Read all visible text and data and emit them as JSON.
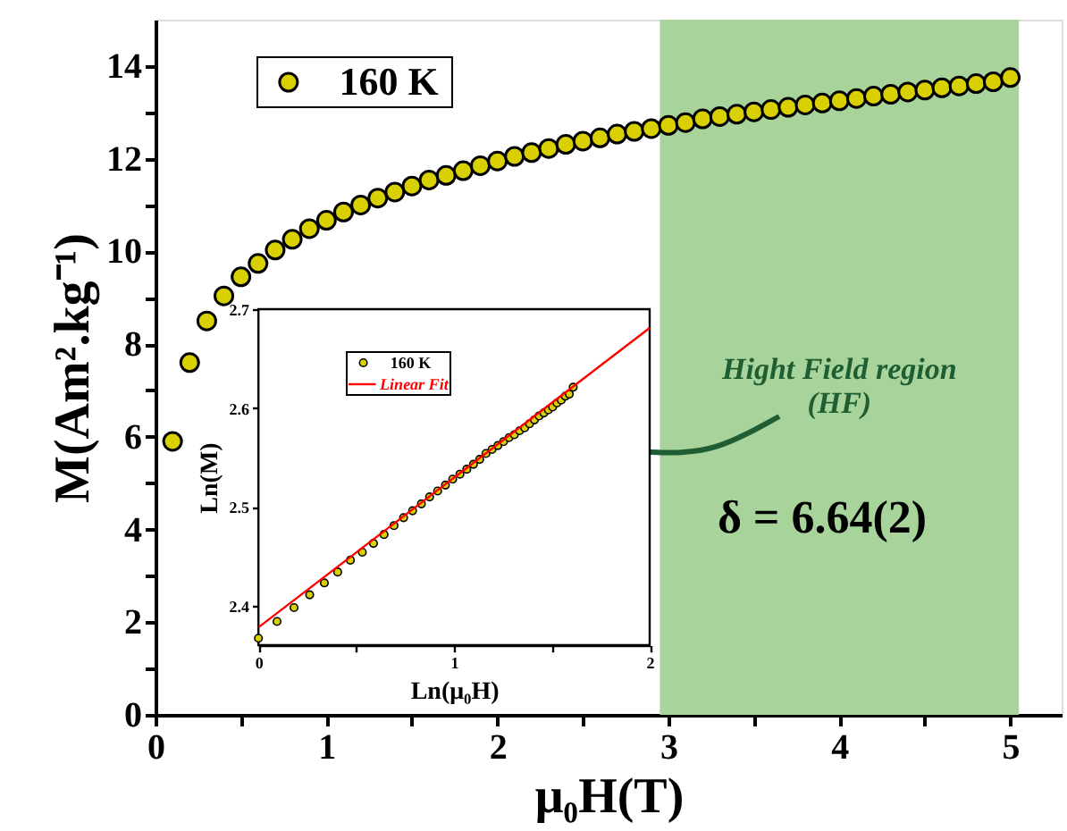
{
  "chart_data": [
    {
      "type": "scatter",
      "xlabel": "μ₀H(T)",
      "ylabel": "M(Am².kg⁻¹)",
      "x": [
        0.1,
        0.2,
        0.3,
        0.4,
        0.5,
        0.6,
        0.7,
        0.8,
        0.9,
        1.0,
        1.1,
        1.2,
        1.3,
        1.4,
        1.5,
        1.6,
        1.7,
        1.8,
        1.9,
        2.0,
        2.1,
        2.2,
        2.3,
        2.4,
        2.5,
        2.6,
        2.7,
        2.8,
        2.9,
        3.0,
        3.1,
        3.2,
        3.3,
        3.4,
        3.5,
        3.6,
        3.7,
        3.8,
        3.9,
        4.0,
        4.1,
        4.2,
        4.3,
        4.4,
        4.5,
        4.6,
        4.7,
        4.8,
        4.9,
        5.0
      ],
      "series": [
        {
          "name": "160 K",
          "color": "#d8d000",
          "values": [
            5.9,
            7.6,
            8.5,
            9.04,
            9.45,
            9.74,
            10.03,
            10.26,
            10.49,
            10.67,
            10.85,
            11.0,
            11.15,
            11.28,
            11.41,
            11.54,
            11.64,
            11.74,
            11.85,
            11.95,
            12.05,
            12.13,
            12.22,
            12.31,
            12.38,
            12.45,
            12.53,
            12.59,
            12.65,
            12.72,
            12.78,
            12.86,
            12.91,
            12.96,
            13.01,
            13.06,
            13.11,
            13.16,
            13.2,
            13.25,
            13.3,
            13.35,
            13.39,
            13.44,
            13.48,
            13.53,
            13.57,
            13.62,
            13.66,
            13.75
          ]
        }
      ],
      "xlim": [
        0,
        5.3
      ],
      "xticks": [
        0,
        {
          "value": 0.5,
          "label": null
        },
        1,
        {
          "value": 1.5,
          "label": null
        },
        2,
        {
          "value": 2.5,
          "label": null
        },
        3,
        {
          "value": 3.5,
          "label": null
        },
        4,
        {
          "value": 4.5,
          "label": null
        },
        5
      ],
      "ylim": [
        0,
        15
      ],
      "yticks": [
        0,
        {
          "value": 1,
          "label": null
        },
        2,
        {
          "value": 3,
          "label": null
        },
        4,
        {
          "value": 5,
          "label": null
        },
        6,
        {
          "value": 7,
          "label": null
        },
        8,
        {
          "value": 9,
          "label": null
        },
        10,
        {
          "value": 11,
          "label": null
        },
        12,
        {
          "value": 13,
          "label": null
        },
        14
      ],
      "bands": [
        {
          "axis": "x",
          "from": 2.95,
          "to": 5.05,
          "label": "Hight Field region\n(HF)",
          "color": "#a8d49c"
        }
      ],
      "annotations": [
        "δ = 6.64(2)"
      ],
      "legend": "top left",
      "marker": "circle",
      "grid": false
    },
    {
      "type": "scatter",
      "xlabel": "Ln(μ₀H)",
      "ylabel": "Ln(M)",
      "series": [
        {
          "name": "160 K",
          "color": "#d8d000",
          "x": [
            0,
            0.095,
            0.182,
            0.262,
            0.337,
            0.405,
            0.47,
            0.531,
            0.588,
            0.642,
            0.693,
            0.742,
            0.788,
            0.833,
            0.875,
            0.916,
            0.956,
            0.993,
            1.03,
            1.065,
            1.099,
            1.131,
            1.163,
            1.194,
            1.224,
            1.253,
            1.281,
            1.308,
            1.335,
            1.361,
            1.386,
            1.411,
            1.435,
            1.459,
            1.482,
            1.504,
            1.526,
            1.548,
            1.569,
            1.589,
            1.609
          ],
          "values": [
            2.367,
            2.384,
            2.398,
            2.411,
            2.423,
            2.434,
            2.446,
            2.454,
            2.463,
            2.472,
            2.481,
            2.489,
            2.496,
            2.503,
            2.51,
            2.516,
            2.522,
            2.528,
            2.533,
            2.538,
            2.543,
            2.548,
            2.554,
            2.558,
            2.562,
            2.566,
            2.57,
            2.573,
            2.577,
            2.58,
            2.584,
            2.588,
            2.592,
            2.595,
            2.598,
            2.601,
            2.605,
            2.608,
            2.612,
            2.614,
            2.621
          ]
        },
        {
          "name": "Linear Fit",
          "type": "line",
          "color": "#ff0000",
          "marker": "none",
          "line_style": "solid",
          "x": [
            0,
            2
          ],
          "values": [
            2.378,
            2.681
          ]
        }
      ],
      "xlim": [
        0,
        2
      ],
      "xticks": [
        0,
        {
          "value": 0.5,
          "label": null
        },
        1,
        {
          "value": 1.5,
          "label": null
        },
        2
      ],
      "ylim": [
        2.36,
        2.7
      ],
      "yticks": [
        2.4,
        2.5,
        2.6,
        2.7
      ],
      "legend": "top left",
      "marker": "circle",
      "grid": false
    }
  ]
}
